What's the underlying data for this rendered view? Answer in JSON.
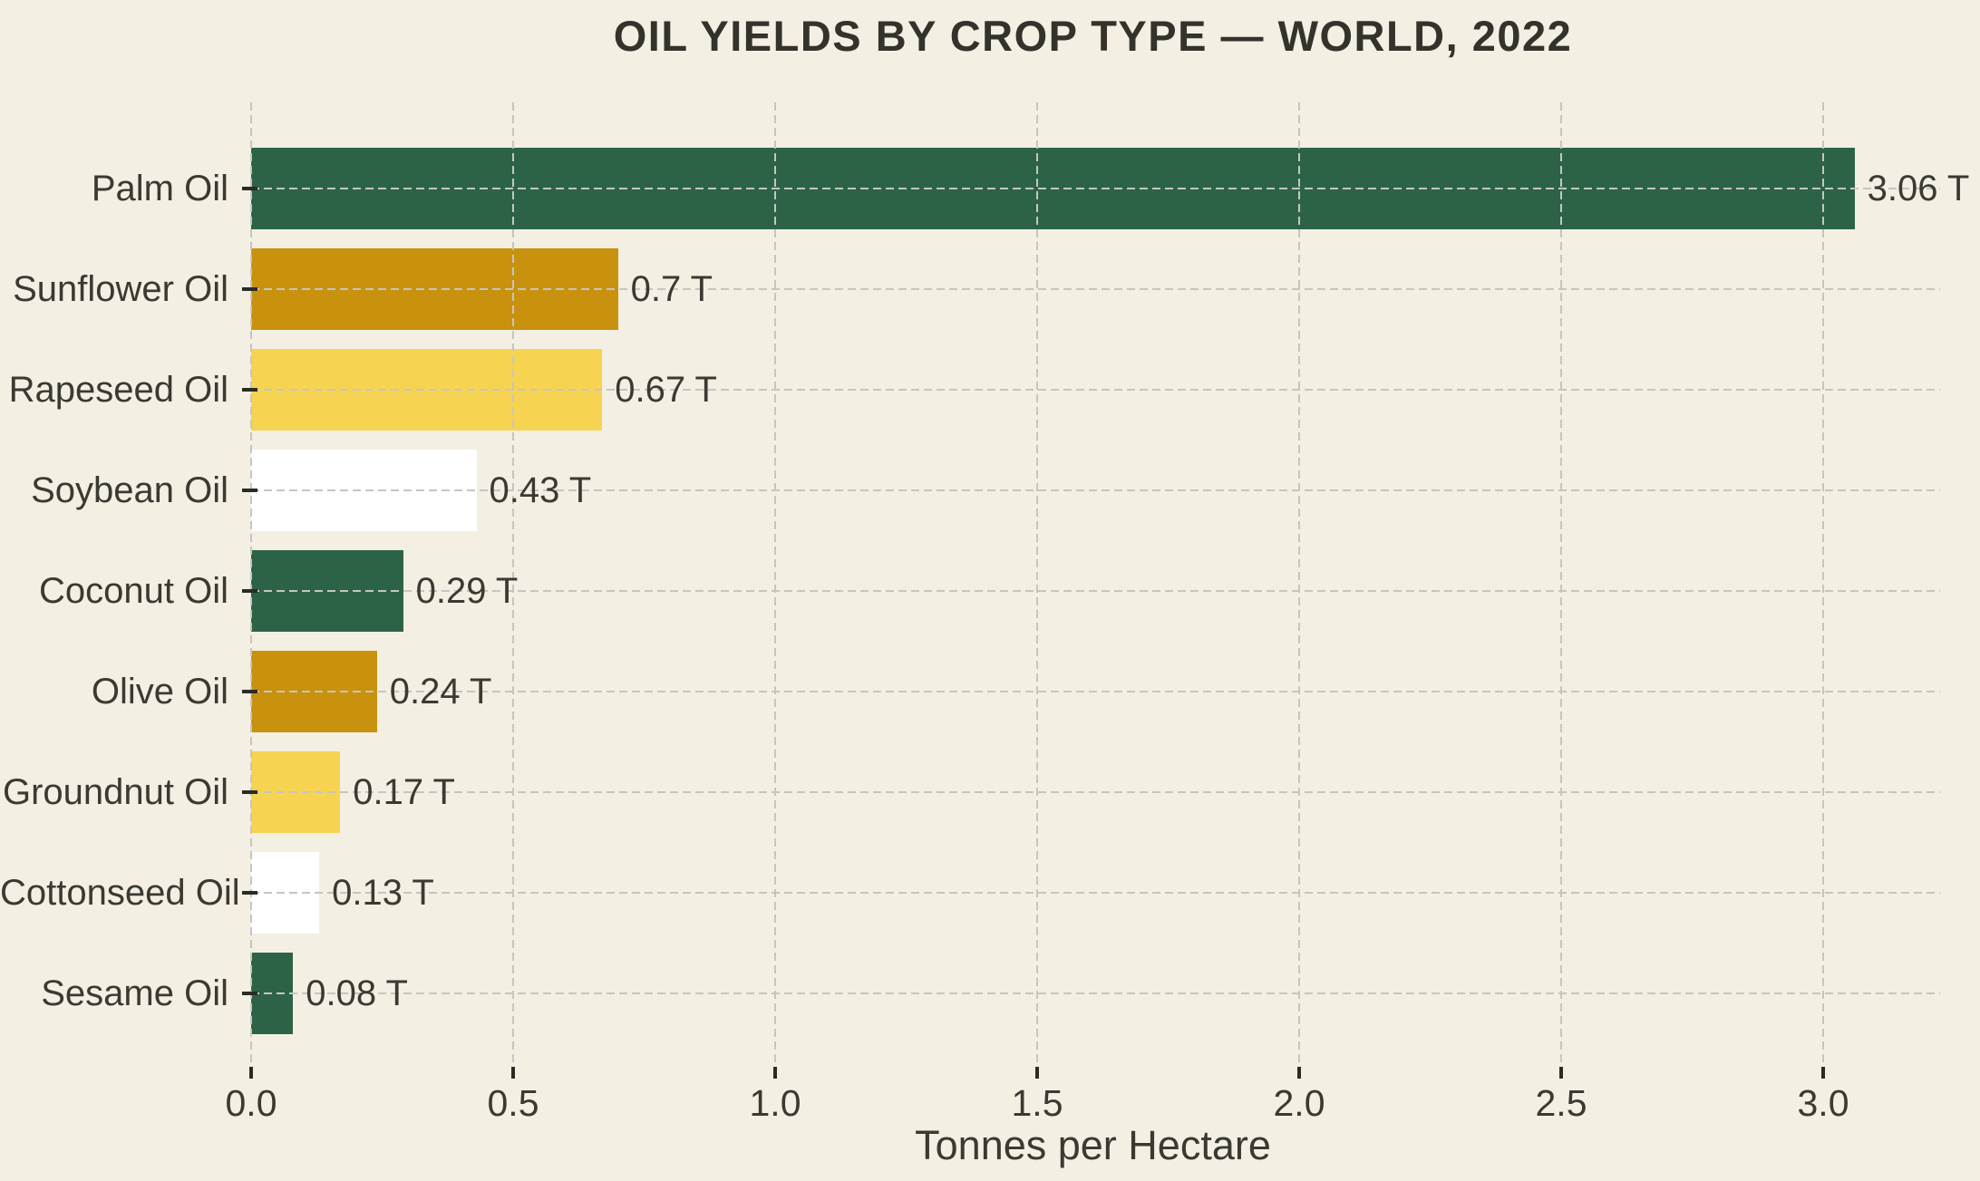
{
  "chart_data": {
    "type": "bar",
    "orientation": "horizontal",
    "title": "OIL YIELDS BY CROP TYPE — WORLD, 2022",
    "xlabel": "Tonnes per Hectare",
    "ylabel": "",
    "unit_suffix": "T",
    "xlim": [
      0.0,
      3.2
    ],
    "xticks": [
      "0.0",
      "0.5",
      "1.0",
      "1.5",
      "2.0",
      "2.5",
      "3.0"
    ],
    "grid": "dashed",
    "legend": "none",
    "background_color": "#f4efe3",
    "gridline_color": "#c6c5c1",
    "text_color": "#3a3a32",
    "palette": {
      "dark_green": "#2c6347",
      "dark_gold": "#c8920f",
      "light_yellow": "#f6d452",
      "white": "#ffffff"
    },
    "categories": [
      "Palm Oil",
      "Sunflower Oil",
      "Rapeseed Oil",
      "Soybean Oil",
      "Coconut Oil",
      "Olive Oil",
      "Groundnut Oil",
      "Cottonseed Oil",
      "Sesame Oil"
    ],
    "values": [
      3.06,
      0.7,
      0.67,
      0.43,
      0.29,
      0.24,
      0.17,
      0.13,
      0.08
    ],
    "bars": [
      {
        "label": "Palm Oil",
        "value": 3.06,
        "display": "3.06 T",
        "color": "#2c6347"
      },
      {
        "label": "Sunflower Oil",
        "value": 0.7,
        "display": "0.7 T",
        "color": "#c8920f"
      },
      {
        "label": "Rapeseed Oil",
        "value": 0.67,
        "display": "0.67 T",
        "color": "#f6d452"
      },
      {
        "label": "Soybean Oil",
        "value": 0.43,
        "display": "0.43 T",
        "color": "#ffffff"
      },
      {
        "label": "Coconut Oil",
        "value": 0.29,
        "display": "0.29 T",
        "color": "#2c6347"
      },
      {
        "label": "Olive Oil",
        "value": 0.24,
        "display": "0.24 T",
        "color": "#c8920f"
      },
      {
        "label": "Groundnut Oil",
        "value": 0.17,
        "display": "0.17 T",
        "color": "#f6d452"
      },
      {
        "label": "Cottonseed Oil",
        "value": 0.13,
        "display": "0.13 T",
        "color": "#ffffff"
      },
      {
        "label": "Sesame Oil",
        "value": 0.08,
        "display": "0.08 T",
        "color": "#2c6347"
      }
    ]
  }
}
